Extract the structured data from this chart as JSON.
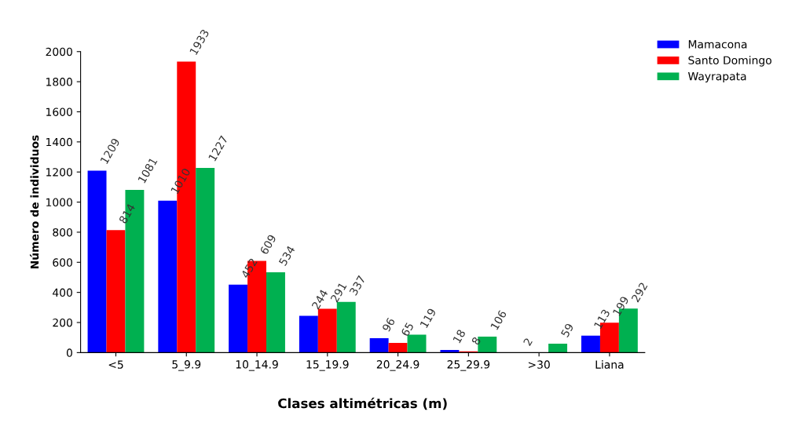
{
  "chart_data": {
    "type": "bar",
    "xlabel": "Clases altimétricas (m)",
    "ylabel": "Número de individuos",
    "categories": [
      "<5",
      "5_9.9",
      "10_14.9",
      "15_19.9",
      "20_24.9",
      "25_29.9",
      ">30",
      "Liana"
    ],
    "series": [
      {
        "name": "Mamacona",
        "color": "#0000ff",
        "values": [
          1209,
          1010,
          452,
          244,
          96,
          18,
          2,
          113
        ]
      },
      {
        "name": "Santo Domingo",
        "color": "#ff0000",
        "values": [
          814,
          1933,
          609,
          291,
          65,
          8,
          null,
          199
        ]
      },
      {
        "name": "Wayrapata",
        "color": "#00b050",
        "values": [
          1081,
          1227,
          534,
          337,
          119,
          106,
          59,
          292
        ]
      }
    ],
    "ylim": [
      0,
      2000
    ],
    "yticks": [
      0,
      200,
      400,
      600,
      800,
      1000,
      1200,
      1400,
      1600,
      1800,
      2000
    ],
    "data_labels": true,
    "legend": "top right",
    "grid": false
  }
}
